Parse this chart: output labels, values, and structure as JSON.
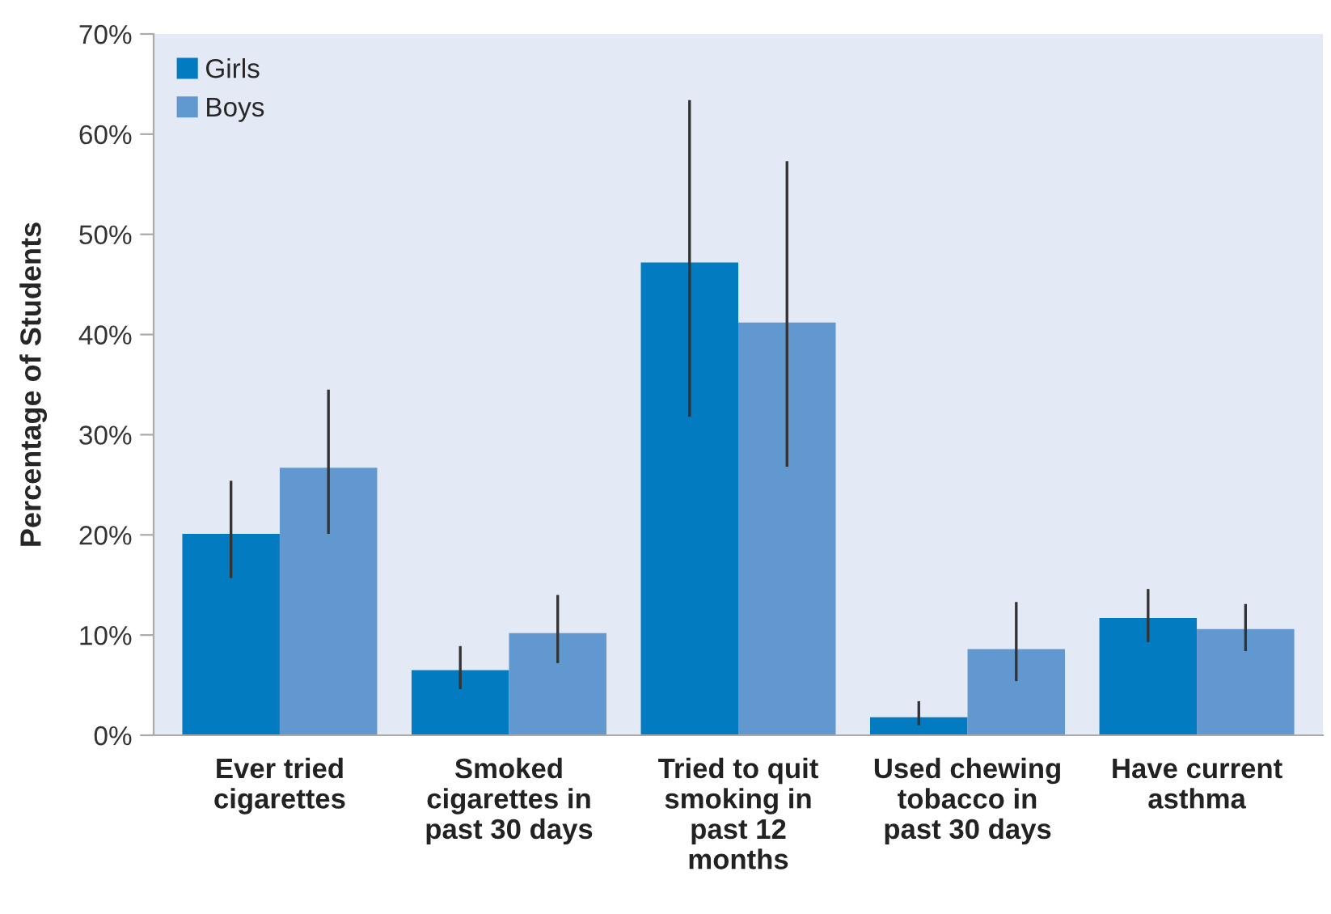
{
  "chart_data": {
    "type": "bar",
    "ylabel": "Percentage of Students",
    "categories": [
      "Ever tried\ncigarettes",
      "Smoked\ncigarettes in\npast 30 days",
      "Tried to quit\nsmoking in\npast 12\nmonths",
      "Used chewing\ntobacco in\npast 30 days",
      "Have current\nasthma"
    ],
    "series": [
      {
        "name": "Girls",
        "color": "#027bc1",
        "values": [
          20.1,
          6.5,
          47.2,
          1.8,
          11.7
        ],
        "errors": [
          [
            15.7,
            25.4
          ],
          [
            4.6,
            8.9
          ],
          [
            31.8,
            63.4
          ],
          [
            1.0,
            3.4
          ],
          [
            9.3,
            14.6
          ]
        ]
      },
      {
        "name": "Boys",
        "color": "#6198d0",
        "values": [
          26.7,
          10.2,
          41.2,
          8.6,
          10.6
        ],
        "errors": [
          [
            20.1,
            34.5
          ],
          [
            7.2,
            14.0
          ],
          [
            26.8,
            57.3
          ],
          [
            5.4,
            13.3
          ],
          [
            8.4,
            13.1
          ]
        ]
      }
    ],
    "ylim": [
      0,
      70
    ],
    "yticks": [
      {
        "value": 0,
        "label": "0%"
      },
      {
        "value": 10,
        "label": "10%"
      },
      {
        "value": 20,
        "label": "20%"
      },
      {
        "value": 30,
        "label": "30%"
      },
      {
        "value": 40,
        "label": "40%"
      },
      {
        "value": 50,
        "label": "50%"
      },
      {
        "value": 60,
        "label": "60%"
      },
      {
        "value": 70,
        "label": "70%"
      }
    ],
    "grid": false,
    "legend": "top left"
  }
}
